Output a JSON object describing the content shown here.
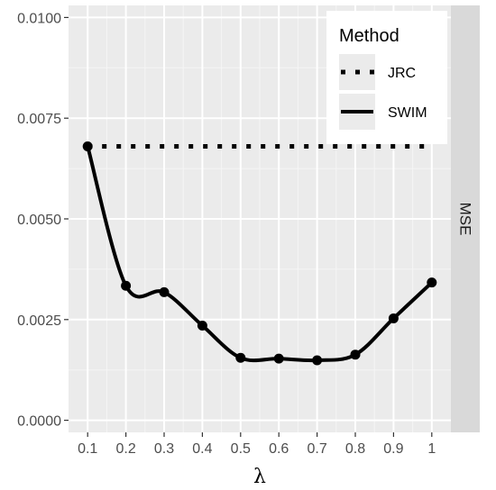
{
  "chart_data": {
    "type": "line",
    "xlabel": "λ",
    "ylabel": "",
    "xlim": [
      0.05,
      1.05
    ],
    "ylim": [
      -0.0003,
      0.0103
    ],
    "x": [
      0.1,
      0.2,
      0.3,
      0.4,
      0.5,
      0.6,
      0.7,
      0.8,
      0.9,
      1.0
    ],
    "x_tick_labels": [
      "0.1",
      "0.2",
      "0.3",
      "0.4",
      "0.5",
      "0.6",
      "0.7",
      "0.8",
      "0.9",
      "1"
    ],
    "y_ticks": [
      0.0,
      0.0025,
      0.005,
      0.0075,
      0.01
    ],
    "y_tick_labels": [
      "0.0000",
      "0.0025",
      "0.0050",
      "0.0075",
      "0.0100"
    ],
    "facet_label": "MSE",
    "legend": {
      "title": "Method",
      "position": "top-right"
    },
    "grid": true,
    "series": [
      {
        "name": "JRC",
        "style": "dotted",
        "color": "#000000",
        "values": [
          0.0068,
          0.0068,
          0.0068,
          0.0068,
          0.0068,
          0.0068,
          0.0068,
          0.0068,
          0.0068,
          0.0068
        ]
      },
      {
        "name": "SWIM",
        "style": "solid",
        "color": "#000000",
        "points": true,
        "values": [
          0.0068,
          0.00334,
          0.00318,
          0.00235,
          0.00155,
          0.00153,
          0.00149,
          0.00163,
          0.00253,
          0.00342
        ]
      }
    ]
  },
  "colors": {
    "panel_background": "#ebebeb",
    "grid_major": "#ffffff",
    "strip_background": "#d9d9d9",
    "text": "#4d4d4d"
  }
}
